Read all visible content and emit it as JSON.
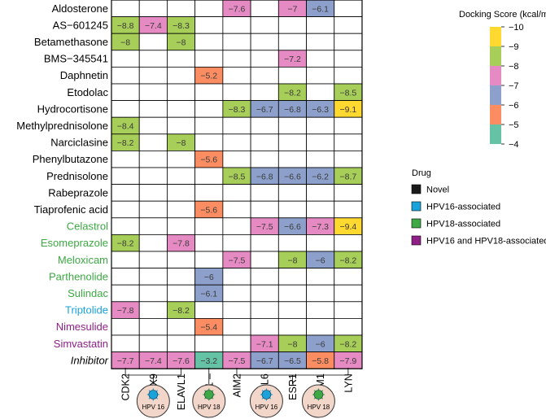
{
  "chart_data": {
    "type": "heatmap",
    "colorbar": {
      "title": "Docking Score (kcal/mol)",
      "ticks": [
        -10,
        -9,
        -8,
        -7,
        -6,
        -5,
        -4
      ]
    },
    "bins": [
      {
        "max": -9,
        "color": "#FFD92F"
      },
      {
        "max": -8,
        "color": "#A6CE58"
      },
      {
        "max": -7,
        "color": "#E68AC3"
      },
      {
        "max": -6,
        "color": "#8DA0CB"
      },
      {
        "max": -5,
        "color": "#FC8D62"
      },
      {
        "max": -4,
        "color": "#66C2A5"
      }
    ],
    "genes": [
      "CDK2",
      "DHX9",
      "ELAVL1",
      "HMGB1",
      "AIM2",
      "BCL6",
      "ESR1",
      "ICAM1",
      "LYN"
    ],
    "drugs": [
      {
        "name": "Aldosterone",
        "category": "novel",
        "values": [
          null,
          null,
          null,
          null,
          -7.6,
          null,
          -7,
          -6.1,
          null
        ]
      },
      {
        "name": "AS−601245",
        "category": "novel",
        "values": [
          -8.8,
          -7.4,
          -8.3,
          null,
          null,
          null,
          null,
          null,
          null
        ]
      },
      {
        "name": "Betamethasone",
        "category": "novel",
        "values": [
          -8,
          null,
          -8,
          null,
          null,
          null,
          null,
          null,
          null
        ]
      },
      {
        "name": "BMS−345541",
        "category": "novel",
        "values": [
          null,
          null,
          null,
          null,
          null,
          null,
          -7.2,
          null,
          null
        ]
      },
      {
        "name": "Daphnetin",
        "category": "novel",
        "values": [
          null,
          null,
          null,
          -5.2,
          null,
          null,
          null,
          null,
          null
        ]
      },
      {
        "name": "Etodolac",
        "category": "novel",
        "values": [
          null,
          null,
          null,
          null,
          null,
          null,
          -8.2,
          null,
          -8.5
        ]
      },
      {
        "name": "Hydrocortisone",
        "category": "novel",
        "values": [
          null,
          null,
          null,
          null,
          -8.3,
          -6.7,
          -6.8,
          -6.3,
          -9.1
        ]
      },
      {
        "name": "Methylprednisolone",
        "category": "novel",
        "values": [
          -8.4,
          null,
          null,
          null,
          null,
          null,
          null,
          null,
          null
        ]
      },
      {
        "name": "Narciclasine",
        "category": "novel",
        "values": [
          -8.2,
          null,
          -8,
          null,
          null,
          null,
          null,
          null,
          null
        ]
      },
      {
        "name": "Phenylbutazone",
        "category": "novel",
        "values": [
          null,
          null,
          null,
          -5.6,
          null,
          null,
          null,
          null,
          null
        ]
      },
      {
        "name": "Prednisolone",
        "category": "novel",
        "values": [
          null,
          null,
          null,
          null,
          -8.5,
          -6.8,
          -6.6,
          -6.2,
          -8.7
        ]
      },
      {
        "name": "Rabeprazole",
        "category": "novel",
        "values": [
          null,
          null,
          null,
          null,
          null,
          null,
          null,
          null,
          null
        ]
      },
      {
        "name": "Tiaprofenic acid",
        "category": "novel",
        "values": [
          null,
          null,
          null,
          -5.6,
          null,
          null,
          null,
          null,
          null
        ]
      },
      {
        "name": "Celastrol",
        "category": "hpv18",
        "values": [
          null,
          null,
          null,
          null,
          null,
          -7.5,
          -6.6,
          -7.3,
          -9.4
        ]
      },
      {
        "name": "Esomeprazole",
        "category": "hpv18",
        "values": [
          -8.2,
          null,
          -7.8,
          null,
          null,
          null,
          null,
          null,
          null
        ]
      },
      {
        "name": "Meloxicam",
        "category": "hpv18",
        "values": [
          null,
          null,
          null,
          null,
          -7.5,
          null,
          -8,
          -6,
          -8.2
        ]
      },
      {
        "name": "Parthenolide",
        "category": "hpv18",
        "values": [
          null,
          null,
          null,
          -6,
          null,
          null,
          null,
          null,
          null
        ]
      },
      {
        "name": "Sulindac",
        "category": "hpv18",
        "values": [
          null,
          null,
          null,
          -6.1,
          null,
          null,
          null,
          null,
          null
        ]
      },
      {
        "name": "Triptolide",
        "category": "hpv16",
        "values": [
          -7.8,
          null,
          -8.2,
          null,
          null,
          null,
          null,
          null,
          null
        ]
      },
      {
        "name": "Nimesulide",
        "category": "both",
        "values": [
          null,
          null,
          null,
          -5.4,
          null,
          null,
          null,
          null,
          null
        ]
      },
      {
        "name": "Simvastatin",
        "category": "both",
        "values": [
          null,
          null,
          null,
          null,
          null,
          -7.1,
          -8,
          -6,
          -8.2
        ]
      },
      {
        "name": "Inhibitor",
        "category": "inhibitor",
        "values": [
          -7.7,
          -7.4,
          -7.6,
          -3.2,
          -7.5,
          -6.7,
          -6.5,
          -5.8,
          -7.9
        ]
      }
    ],
    "drug_legend": {
      "title": "Drug",
      "items": [
        {
          "key": "novel",
          "label": "Novel",
          "color": "#1a1a1a"
        },
        {
          "key": "hpv16",
          "label": "HPV16-associated",
          "color": "#1AA3DB"
        },
        {
          "key": "hpv18",
          "label": "HPV18-associated",
          "color": "#3DA844"
        },
        {
          "key": "both",
          "label": "HPV16 and HPV18-associated",
          "color": "#8E1F87"
        }
      ]
    },
    "groups": [
      {
        "key": "hpv16",
        "genes": [
          "CDK2",
          "DHX9",
          "ELAVL1"
        ],
        "badge": "HPV 16"
      },
      {
        "key": "hpv18",
        "genes": [
          "HMGB1"
        ],
        "badge": "HPV 18"
      },
      {
        "key": "both",
        "genes": [
          "AIM2",
          "BCL6",
          "ESR1",
          "ICAM1",
          "LYN"
        ],
        "badges": [
          "HPV 16",
          "HPV 18"
        ]
      }
    ],
    "category_text_colors": {
      "novel": "#000000",
      "hpv16": "#1AA3DB",
      "hpv18": "#3DA844",
      "both": "#8E1F87",
      "inhibitor": "#000000"
    },
    "gene_suffix": {
      "HMGB1": " –"
    }
  }
}
